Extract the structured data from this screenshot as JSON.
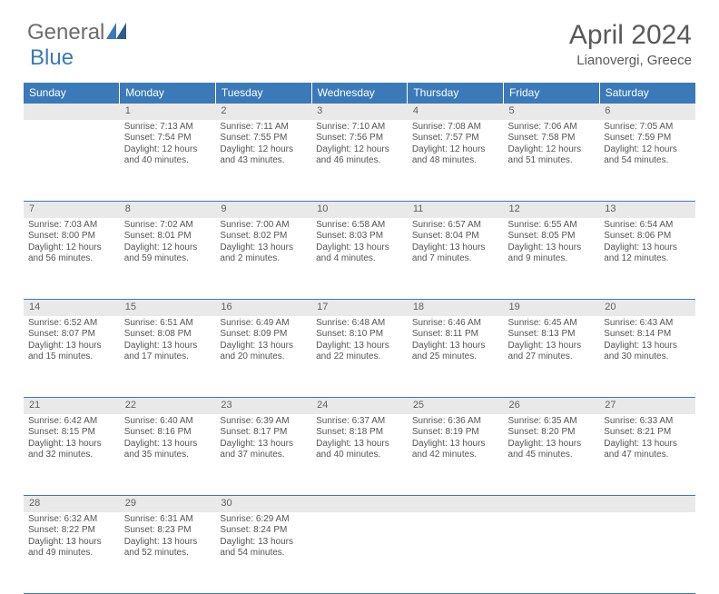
{
  "brand": {
    "part1": "General",
    "part2": "Blue"
  },
  "title": "April 2024",
  "location": "Lianovergi, Greece",
  "colors": {
    "header_bg": "#3a7ab8",
    "text": "#555555",
    "grey_row": "#e9e9e9",
    "border": "#3a7ab8"
  },
  "days": [
    "Sunday",
    "Monday",
    "Tuesday",
    "Wednesday",
    "Thursday",
    "Friday",
    "Saturday"
  ],
  "weeks": [
    [
      {
        "n": "",
        "sr": "",
        "ss": "",
        "dl": ""
      },
      {
        "n": "1",
        "sr": "Sunrise: 7:13 AM",
        "ss": "Sunset: 7:54 PM",
        "dl": "Daylight: 12 hours and 40 minutes."
      },
      {
        "n": "2",
        "sr": "Sunrise: 7:11 AM",
        "ss": "Sunset: 7:55 PM",
        "dl": "Daylight: 12 hours and 43 minutes."
      },
      {
        "n": "3",
        "sr": "Sunrise: 7:10 AM",
        "ss": "Sunset: 7:56 PM",
        "dl": "Daylight: 12 hours and 46 minutes."
      },
      {
        "n": "4",
        "sr": "Sunrise: 7:08 AM",
        "ss": "Sunset: 7:57 PM",
        "dl": "Daylight: 12 hours and 48 minutes."
      },
      {
        "n": "5",
        "sr": "Sunrise: 7:06 AM",
        "ss": "Sunset: 7:58 PM",
        "dl": "Daylight: 12 hours and 51 minutes."
      },
      {
        "n": "6",
        "sr": "Sunrise: 7:05 AM",
        "ss": "Sunset: 7:59 PM",
        "dl": "Daylight: 12 hours and 54 minutes."
      }
    ],
    [
      {
        "n": "7",
        "sr": "Sunrise: 7:03 AM",
        "ss": "Sunset: 8:00 PM",
        "dl": "Daylight: 12 hours and 56 minutes."
      },
      {
        "n": "8",
        "sr": "Sunrise: 7:02 AM",
        "ss": "Sunset: 8:01 PM",
        "dl": "Daylight: 12 hours and 59 minutes."
      },
      {
        "n": "9",
        "sr": "Sunrise: 7:00 AM",
        "ss": "Sunset: 8:02 PM",
        "dl": "Daylight: 13 hours and 2 minutes."
      },
      {
        "n": "10",
        "sr": "Sunrise: 6:58 AM",
        "ss": "Sunset: 8:03 PM",
        "dl": "Daylight: 13 hours and 4 minutes."
      },
      {
        "n": "11",
        "sr": "Sunrise: 6:57 AM",
        "ss": "Sunset: 8:04 PM",
        "dl": "Daylight: 13 hours and 7 minutes."
      },
      {
        "n": "12",
        "sr": "Sunrise: 6:55 AM",
        "ss": "Sunset: 8:05 PM",
        "dl": "Daylight: 13 hours and 9 minutes."
      },
      {
        "n": "13",
        "sr": "Sunrise: 6:54 AM",
        "ss": "Sunset: 8:06 PM",
        "dl": "Daylight: 13 hours and 12 minutes."
      }
    ],
    [
      {
        "n": "14",
        "sr": "Sunrise: 6:52 AM",
        "ss": "Sunset: 8:07 PM",
        "dl": "Daylight: 13 hours and 15 minutes."
      },
      {
        "n": "15",
        "sr": "Sunrise: 6:51 AM",
        "ss": "Sunset: 8:08 PM",
        "dl": "Daylight: 13 hours and 17 minutes."
      },
      {
        "n": "16",
        "sr": "Sunrise: 6:49 AM",
        "ss": "Sunset: 8:09 PM",
        "dl": "Daylight: 13 hours and 20 minutes."
      },
      {
        "n": "17",
        "sr": "Sunrise: 6:48 AM",
        "ss": "Sunset: 8:10 PM",
        "dl": "Daylight: 13 hours and 22 minutes."
      },
      {
        "n": "18",
        "sr": "Sunrise: 6:46 AM",
        "ss": "Sunset: 8:11 PM",
        "dl": "Daylight: 13 hours and 25 minutes."
      },
      {
        "n": "19",
        "sr": "Sunrise: 6:45 AM",
        "ss": "Sunset: 8:13 PM",
        "dl": "Daylight: 13 hours and 27 minutes."
      },
      {
        "n": "20",
        "sr": "Sunrise: 6:43 AM",
        "ss": "Sunset: 8:14 PM",
        "dl": "Daylight: 13 hours and 30 minutes."
      }
    ],
    [
      {
        "n": "21",
        "sr": "Sunrise: 6:42 AM",
        "ss": "Sunset: 8:15 PM",
        "dl": "Daylight: 13 hours and 32 minutes."
      },
      {
        "n": "22",
        "sr": "Sunrise: 6:40 AM",
        "ss": "Sunset: 8:16 PM",
        "dl": "Daylight: 13 hours and 35 minutes."
      },
      {
        "n": "23",
        "sr": "Sunrise: 6:39 AM",
        "ss": "Sunset: 8:17 PM",
        "dl": "Daylight: 13 hours and 37 minutes."
      },
      {
        "n": "24",
        "sr": "Sunrise: 6:37 AM",
        "ss": "Sunset: 8:18 PM",
        "dl": "Daylight: 13 hours and 40 minutes."
      },
      {
        "n": "25",
        "sr": "Sunrise: 6:36 AM",
        "ss": "Sunset: 8:19 PM",
        "dl": "Daylight: 13 hours and 42 minutes."
      },
      {
        "n": "26",
        "sr": "Sunrise: 6:35 AM",
        "ss": "Sunset: 8:20 PM",
        "dl": "Daylight: 13 hours and 45 minutes."
      },
      {
        "n": "27",
        "sr": "Sunrise: 6:33 AM",
        "ss": "Sunset: 8:21 PM",
        "dl": "Daylight: 13 hours and 47 minutes."
      }
    ],
    [
      {
        "n": "28",
        "sr": "Sunrise: 6:32 AM",
        "ss": "Sunset: 8:22 PM",
        "dl": "Daylight: 13 hours and 49 minutes."
      },
      {
        "n": "29",
        "sr": "Sunrise: 6:31 AM",
        "ss": "Sunset: 8:23 PM",
        "dl": "Daylight: 13 hours and 52 minutes."
      },
      {
        "n": "30",
        "sr": "Sunrise: 6:29 AM",
        "ss": "Sunset: 8:24 PM",
        "dl": "Daylight: 13 hours and 54 minutes."
      },
      {
        "n": "",
        "sr": "",
        "ss": "",
        "dl": ""
      },
      {
        "n": "",
        "sr": "",
        "ss": "",
        "dl": ""
      },
      {
        "n": "",
        "sr": "",
        "ss": "",
        "dl": ""
      },
      {
        "n": "",
        "sr": "",
        "ss": "",
        "dl": ""
      }
    ]
  ]
}
